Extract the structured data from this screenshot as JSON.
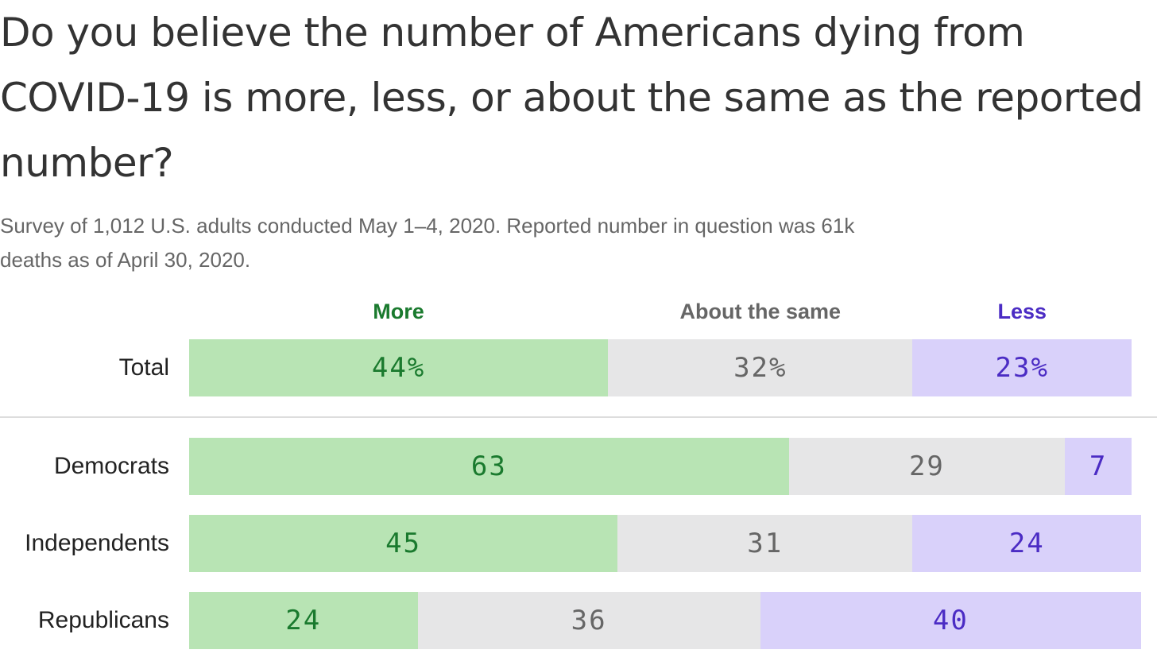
{
  "colors": {
    "more_bg": "#b8e4b4",
    "more_text": "#1a7a2e",
    "same_bg": "#e6e6e7",
    "same_text": "#666666",
    "less_bg": "#d9d1fa",
    "less_text": "#4b2cc4"
  },
  "chart_data": {
    "type": "bar",
    "orientation": "horizontal",
    "stacked": true,
    "title": "Do you believe the number of Americans dying from COVID-19 is more, less, or about the same as the reported number?",
    "subtitle": "Survey of 1,012 U.S. adults conducted May 1–4, 2020. Reported number in question was 61k deaths as of April 30, 2020.",
    "categories": [
      "Total",
      "Democrats",
      "Independents",
      "Republicans"
    ],
    "series": [
      {
        "name": "More",
        "values": [
          44,
          63,
          45,
          24
        ],
        "labels": [
          "44%",
          "63",
          "45",
          "24"
        ]
      },
      {
        "name": "About the same",
        "values": [
          32,
          29,
          31,
          36
        ],
        "labels": [
          "32%",
          "29",
          "31",
          "36"
        ]
      },
      {
        "name": "Less",
        "values": [
          23,
          7,
          24,
          40
        ],
        "labels": [
          "23%",
          "7",
          "24",
          "40"
        ]
      }
    ],
    "xlim": [
      0,
      100
    ],
    "grid": false,
    "legend": "top"
  }
}
